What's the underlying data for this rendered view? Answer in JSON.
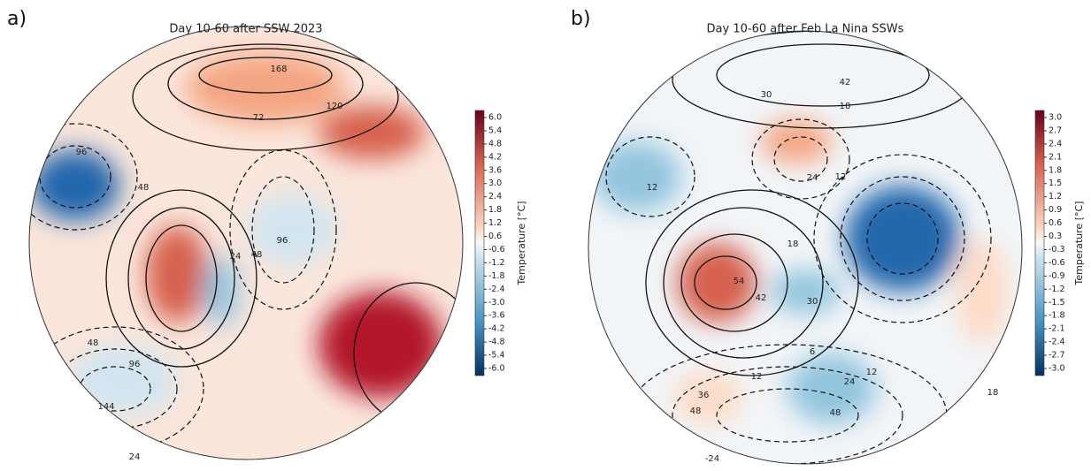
{
  "panels": [
    {
      "label": "a)",
      "title": "Day 10-60 after SSW 2023",
      "colorbar": {
        "label": "Temperature [°C]",
        "ticks": [
          "6.0",
          "5.4",
          "4.8",
          "4.2",
          "3.6",
          "3.0",
          "2.4",
          "1.8",
          "1.2",
          "0.6",
          "-0.6",
          "-1.2",
          "-1.8",
          "-2.4",
          "-3.0",
          "-3.6",
          "-4.2",
          "-4.8",
          "-5.4",
          "-6.0"
        ]
      },
      "contour_labels": [
        "168",
        "72",
        "120",
        "96",
        "48",
        "24",
        "48",
        "96",
        "48",
        "96",
        "144",
        "24"
      ]
    },
    {
      "label": "b)",
      "title": "Day 10-60 after Feb La Nina SSWs",
      "colorbar": {
        "label": "Temperature [°C]",
        "ticks": [
          "3.0",
          "2.7",
          "2.4",
          "2.1",
          "1.8",
          "1.5",
          "1.2",
          "0.9",
          "0.6",
          "0.3",
          "-0.3",
          "-0.6",
          "-0.9",
          "-1.2",
          "-1.5",
          "-1.8",
          "-2.1",
          "-2.4",
          "-2.7",
          "-3.0"
        ]
      },
      "contour_labels": [
        "42",
        "30",
        "18",
        "12",
        "24",
        "12",
        "18",
        "54",
        "42",
        "30",
        "6",
        "12",
        "36",
        "48",
        "48",
        "24",
        "12",
        "18",
        "-24"
      ]
    }
  ]
}
